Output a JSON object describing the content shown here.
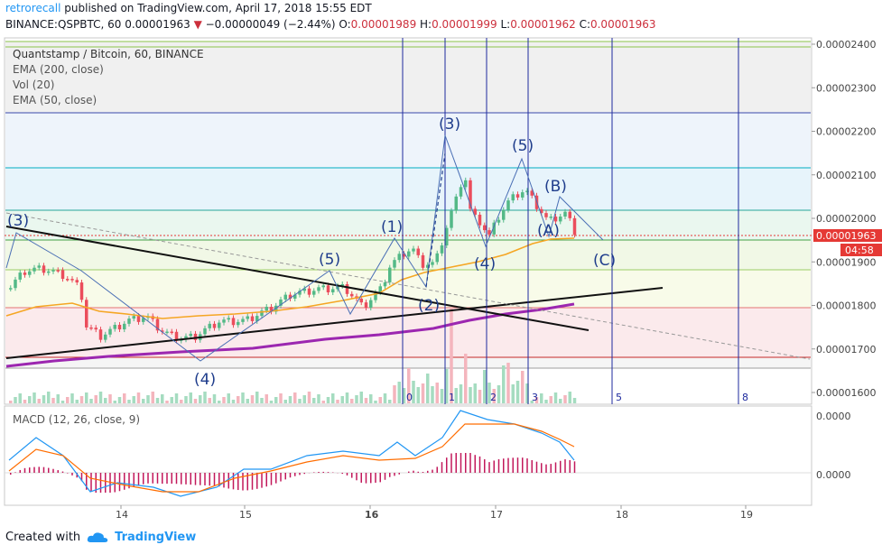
{
  "header": {
    "user": "retrorecall",
    "published_text": "published on TradingView.com, April 17, 2018 15:55 EDT",
    "symbol": "BINANCE:QSPBTC, 60",
    "last": "0.00001963",
    "change": "−0.00000049 (−2.44%)",
    "o_label": "O:",
    "o_val": "0.00001989",
    "h_label": "H:",
    "h_val": "0.00001999",
    "l_label": "L:",
    "l_val": "0.00001962",
    "c_label": "C:",
    "c_val": "0.00001963"
  },
  "legend": {
    "title": "Quantstamp / Bitcoin, 60, BINANCE",
    "ema200": "EMA (200, close)",
    "vol": "Vol (20)",
    "ema50": "EMA (50, close)",
    "macd": "MACD (12, 26, close, 9)"
  },
  "footer": {
    "created": "Created with",
    "brand": "TradingView"
  },
  "colors": {
    "up": "#53b987",
    "down": "#eb4d5c",
    "ema50": "#f5a623",
    "ema200": "#9c27b0",
    "macd": "#2196f3",
    "signal": "#ff6d00",
    "hist": "#c2185b",
    "wave": "#1f3d8c",
    "vline": "#1e2a9e"
  },
  "chart_data": [
    {
      "type": "candlestick",
      "title": "Quantstamp / Bitcoin, 60, BINANCE",
      "x_ticks": [
        "14",
        "15",
        "16",
        "17",
        "18",
        "19"
      ],
      "y_ticks": [
        "0.00002400",
        "0.00002300",
        "0.00002200",
        "0.00002100",
        "0.00002000",
        "0.00001900",
        "0.00001800",
        "0.00001700",
        "0.00001600"
      ],
      "ylim": [
        1.57e-05,
        2.41e-05
      ],
      "last_price_label": "0.00001963",
      "countdown_label": "04:58",
      "series": [
        {
          "name": "EMA (50, close)",
          "values_approx": [
            1.78e-05,
            1.78e-05,
            1.75e-05,
            1.74e-05,
            1.76e-05,
            1.78e-05,
            1.8e-05,
            1.84e-05,
            1.9e-05,
            1.94e-05,
            1.95e-05
          ]
        },
        {
          "name": "EMA (200, close)",
          "values_approx": [
            1.66e-05,
            1.69e-05,
            1.7e-05,
            1.71e-05,
            1.72e-05,
            1.74e-05,
            1.76e-05,
            1.79e-05,
            1.81e-05
          ]
        }
      ],
      "wave_labels": [
        "(3)",
        "(4)",
        "(5)",
        "(1)",
        "(2)",
        "(3)",
        "(4)",
        "(5)",
        "(A)",
        "(B)",
        "(C)"
      ],
      "fib_vline_labels": [
        "0",
        "1",
        "2",
        "3",
        "5",
        "8"
      ]
    },
    {
      "type": "line",
      "title": "MACD (12, 26, close, 9)",
      "y_ticks": [
        "0.0000",
        "0.0000"
      ],
      "series": [
        {
          "name": "MACD"
        },
        {
          "name": "Signal"
        }
      ]
    }
  ]
}
